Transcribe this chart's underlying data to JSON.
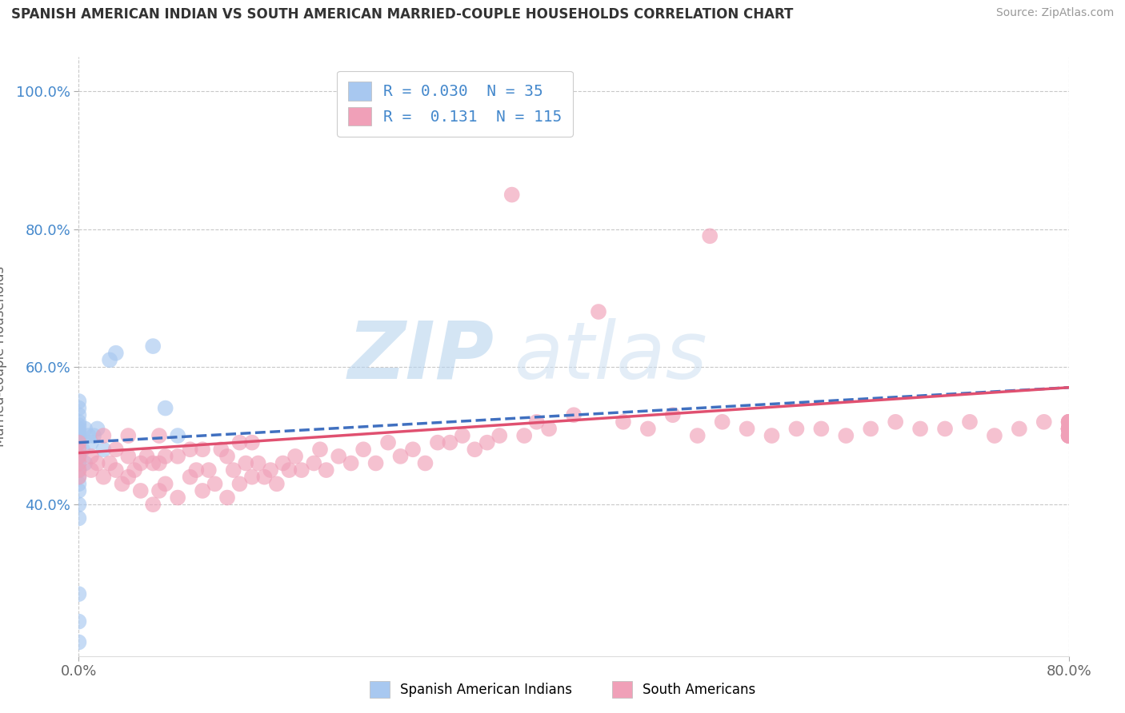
{
  "title": "SPANISH AMERICAN INDIAN VS SOUTH AMERICAN MARRIED-COUPLE HOUSEHOLDS CORRELATION CHART",
  "source": "Source: ZipAtlas.com",
  "ylabel": "Married-couple Households",
  "xlim": [
    0.0,
    0.8
  ],
  "ylim": [
    0.18,
    1.05
  ],
  "xticks": [
    0.0,
    0.8
  ],
  "xticklabels": [
    "0.0%",
    "80.0%"
  ],
  "yticks": [
    0.4,
    0.6,
    0.8,
    1.0
  ],
  "yticklabels": [
    "40.0%",
    "60.0%",
    "80.0%",
    "100.0%"
  ],
  "legend_r_blue": "0.030",
  "legend_n_blue": "35",
  "legend_r_pink": "0.131",
  "legend_n_pink": "115",
  "legend_label_blue": "Spanish American Indians",
  "legend_label_pink": "South Americans",
  "blue_color": "#a8c8f0",
  "pink_color": "#f0a0b8",
  "blue_line_color": "#4070c0",
  "pink_line_color": "#e05070",
  "watermark_color": "#cce0f5",
  "background_color": "#ffffff",
  "grid_color": "#c8c8c8",
  "blue_x": [
    0.0,
    0.0,
    0.0,
    0.0,
    0.0,
    0.0,
    0.0,
    0.0,
    0.0,
    0.0,
    0.0,
    0.0,
    0.0,
    0.0,
    0.0,
    0.0,
    0.0,
    0.0,
    0.0,
    0.0,
    0.0,
    0.0,
    0.003,
    0.005,
    0.005,
    0.008,
    0.01,
    0.012,
    0.015,
    0.02,
    0.025,
    0.03,
    0.06,
    0.07,
    0.08
  ],
  "blue_y": [
    0.2,
    0.23,
    0.27,
    0.38,
    0.4,
    0.42,
    0.43,
    0.44,
    0.45,
    0.46,
    0.47,
    0.48,
    0.49,
    0.495,
    0.5,
    0.505,
    0.51,
    0.515,
    0.52,
    0.53,
    0.54,
    0.55,
    0.48,
    0.46,
    0.51,
    0.5,
    0.49,
    0.5,
    0.51,
    0.48,
    0.61,
    0.62,
    0.63,
    0.54,
    0.5
  ],
  "pink_x": [
    0.0,
    0.0,
    0.0,
    0.0,
    0.0,
    0.0,
    0.01,
    0.01,
    0.015,
    0.02,
    0.02,
    0.025,
    0.03,
    0.03,
    0.035,
    0.04,
    0.04,
    0.04,
    0.045,
    0.05,
    0.05,
    0.055,
    0.06,
    0.06,
    0.065,
    0.065,
    0.065,
    0.07,
    0.07,
    0.08,
    0.08,
    0.09,
    0.09,
    0.095,
    0.1,
    0.1,
    0.105,
    0.11,
    0.115,
    0.12,
    0.12,
    0.125,
    0.13,
    0.13,
    0.135,
    0.14,
    0.14,
    0.145,
    0.15,
    0.155,
    0.16,
    0.165,
    0.17,
    0.175,
    0.18,
    0.19,
    0.195,
    0.2,
    0.21,
    0.22,
    0.23,
    0.24,
    0.25,
    0.26,
    0.27,
    0.28,
    0.29,
    0.3,
    0.31,
    0.32,
    0.33,
    0.34,
    0.35,
    0.36,
    0.37,
    0.38,
    0.4,
    0.42,
    0.44,
    0.46,
    0.48,
    0.5,
    0.51,
    0.52,
    0.54,
    0.56,
    0.58,
    0.6,
    0.62,
    0.64,
    0.66,
    0.68,
    0.7,
    0.72,
    0.74,
    0.76,
    0.78,
    0.8,
    0.8,
    0.8,
    0.8,
    0.8,
    0.8,
    0.8,
    0.8,
    0.8,
    0.8,
    0.8,
    0.8,
    0.8,
    0.8,
    0.8,
    0.8,
    0.8,
    0.8
  ],
  "pink_y": [
    0.44,
    0.45,
    0.46,
    0.47,
    0.48,
    0.49,
    0.45,
    0.47,
    0.46,
    0.44,
    0.5,
    0.46,
    0.45,
    0.48,
    0.43,
    0.44,
    0.47,
    0.5,
    0.45,
    0.42,
    0.46,
    0.47,
    0.4,
    0.46,
    0.42,
    0.46,
    0.5,
    0.43,
    0.47,
    0.41,
    0.47,
    0.44,
    0.48,
    0.45,
    0.42,
    0.48,
    0.45,
    0.43,
    0.48,
    0.41,
    0.47,
    0.45,
    0.43,
    0.49,
    0.46,
    0.44,
    0.49,
    0.46,
    0.44,
    0.45,
    0.43,
    0.46,
    0.45,
    0.47,
    0.45,
    0.46,
    0.48,
    0.45,
    0.47,
    0.46,
    0.48,
    0.46,
    0.49,
    0.47,
    0.48,
    0.46,
    0.49,
    0.49,
    0.5,
    0.48,
    0.49,
    0.5,
    0.85,
    0.5,
    0.52,
    0.51,
    0.53,
    0.68,
    0.52,
    0.51,
    0.53,
    0.5,
    0.79,
    0.52,
    0.51,
    0.5,
    0.51,
    0.51,
    0.5,
    0.51,
    0.52,
    0.51,
    0.51,
    0.52,
    0.5,
    0.51,
    0.52,
    0.51,
    0.5,
    0.51,
    0.52,
    0.51,
    0.5,
    0.51,
    0.52,
    0.51,
    0.5,
    0.51,
    0.5,
    0.51,
    0.52,
    0.51,
    0.5,
    0.51,
    0.52
  ],
  "blue_line_x0": 0.0,
  "blue_line_x1": 0.8,
  "blue_line_y0": 0.49,
  "blue_line_y1": 0.57,
  "pink_line_x0": 0.0,
  "pink_line_x1": 0.8,
  "pink_line_y0": 0.475,
  "pink_line_y1": 0.57
}
